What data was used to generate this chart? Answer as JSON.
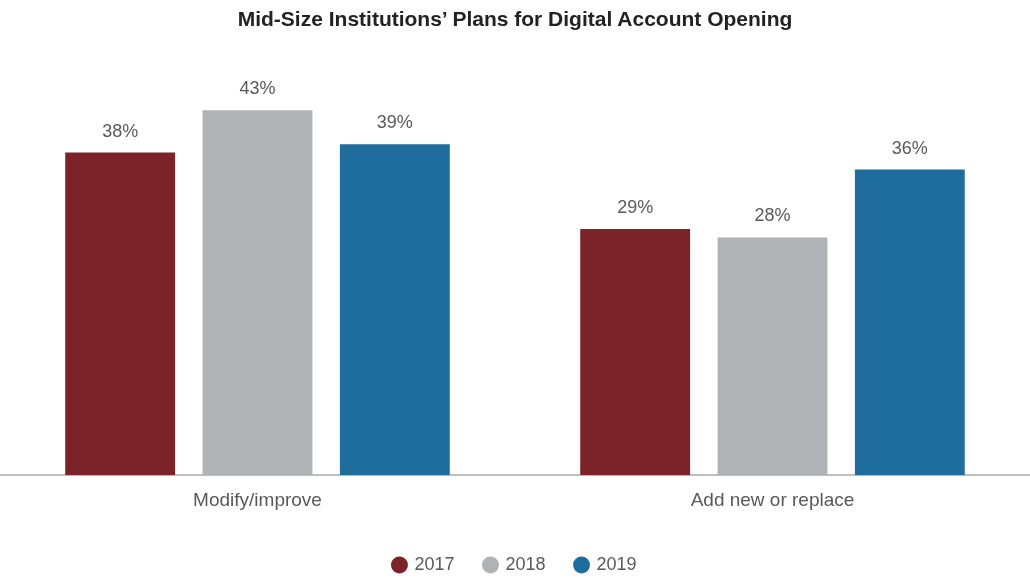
{
  "chart_data": {
    "type": "bar",
    "title": "Mid-Size Institutions’ Plans for Digital Account Opening",
    "categories": [
      "Modify/improve",
      "Add new or replace"
    ],
    "series": [
      {
        "name": "2017",
        "color": "#7b2328",
        "values": [
          38,
          29
        ],
        "value_labels": [
          "38%",
          "29%"
        ]
      },
      {
        "name": "2018",
        "color": "#b1b2b5",
        "values": [
          43,
          28
        ],
        "value_labels": [
          "43%",
          "28%"
        ]
      },
      {
        "name": "2019",
        "color": "#1f6d9c",
        "values": [
          39,
          36
        ],
        "value_labels": [
          "39%",
          "36%"
        ]
      }
    ],
    "legend": "bottom",
    "grid": false
  }
}
